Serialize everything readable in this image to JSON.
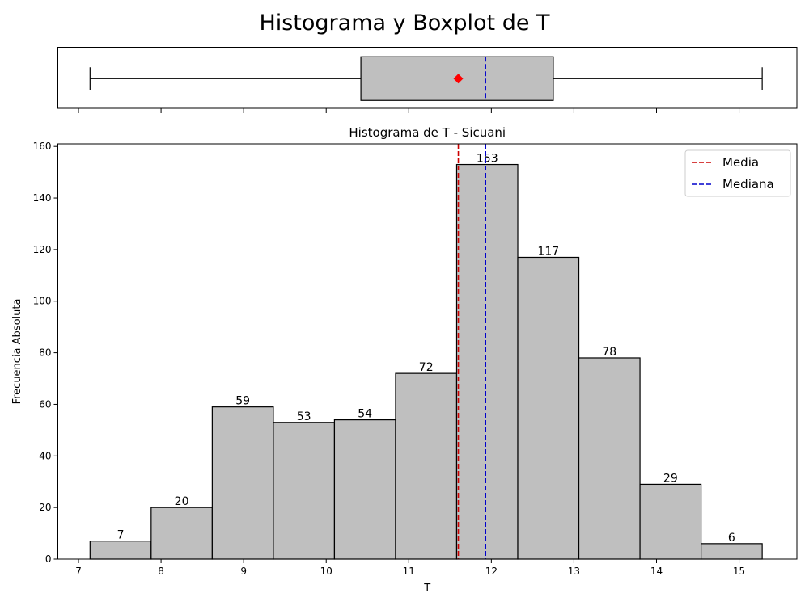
{
  "figure": {
    "suptitle": "Histograma y Boxplot de T"
  },
  "chart_data": [
    {
      "type": "boxplot",
      "variable": "T",
      "whisker_low": 7.14,
      "q1": 10.42,
      "median": 11.93,
      "mean": 11.6,
      "q3": 12.75,
      "whisker_high": 15.28,
      "box_color": "#bfbfbf",
      "mean_marker_color": "#ff0000",
      "median_line_color": "#0000cc",
      "xlim": [
        6.75,
        15.7
      ],
      "xticks": [
        7,
        8,
        9,
        10,
        11,
        12,
        13,
        14,
        15
      ],
      "tick_labels_shown": false
    },
    {
      "type": "histogram",
      "title": "Histograma de T - Sicuani",
      "xlabel": "T",
      "ylabel": "Frecuencia Absoluta",
      "bin_edges": [
        7.14,
        7.88,
        8.62,
        9.36,
        10.1,
        10.84,
        11.58,
        12.32,
        13.06,
        13.8,
        14.54,
        15.28
      ],
      "counts": [
        7,
        20,
        59,
        53,
        54,
        72,
        153,
        117,
        78,
        29,
        6
      ],
      "count_labels": [
        "7",
        "20",
        "59",
        "53",
        "54",
        "72",
        "153",
        "117",
        "78",
        "29",
        "6"
      ],
      "bar_color": "#bfbfbf",
      "xlim": [
        6.75,
        15.7
      ],
      "ylim": [
        0,
        161
      ],
      "xticks": [
        7,
        8,
        9,
        10,
        11,
        12,
        13,
        14,
        15
      ],
      "yticks": [
        0,
        20,
        40,
        60,
        80,
        100,
        120,
        140,
        160
      ],
      "reference_lines": [
        {
          "name": "Media",
          "x": 11.6,
          "color": "#cc0000"
        },
        {
          "name": "Mediana",
          "x": 11.93,
          "color": "#0000cc"
        }
      ],
      "legend": {
        "placement": "top-right",
        "entries": [
          "Media",
          "Mediana"
        ]
      }
    }
  ]
}
